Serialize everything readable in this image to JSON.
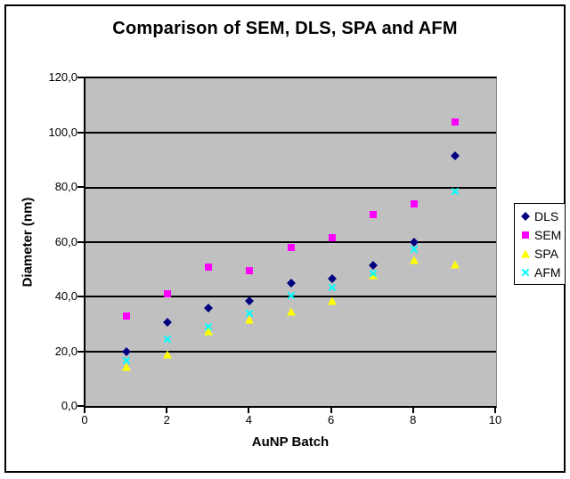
{
  "chart_data": {
    "type": "scatter",
    "title": "Comparison of SEM, DLS, SPA and AFM",
    "xlabel": "AuNP Batch",
    "ylabel": "Diameter (nm)",
    "xlim": [
      0,
      10
    ],
    "ylim": [
      0,
      120
    ],
    "x_tick_labels": [
      "0",
      "2",
      "4",
      "6",
      "8",
      "10"
    ],
    "y_tick_labels": [
      "120,0",
      "100,0",
      "80,0",
      "60,0",
      "40,0",
      "20,0",
      "0,0"
    ],
    "grid": true,
    "plot_background": "#c0c0c0",
    "legend_position": "right",
    "x": [
      1,
      2,
      3,
      4,
      5,
      6,
      7,
      8,
      9
    ],
    "series": [
      {
        "name": "DLS",
        "marker": "diamond",
        "color": "#000080",
        "values": [
          20,
          30.5,
          36,
          38.5,
          45,
          46.5,
          51.5,
          60,
          91.5
        ]
      },
      {
        "name": "SEM",
        "marker": "square",
        "color": "#ff00ff",
        "values": [
          33,
          41,
          51,
          49.5,
          58,
          61.5,
          70,
          74,
          104
        ]
      },
      {
        "name": "SPA",
        "marker": "triangle",
        "color": "#ffff00",
        "values": [
          14.5,
          19,
          27.5,
          31.5,
          34.5,
          38.5,
          48,
          53.5,
          52
        ]
      },
      {
        "name": "AFM",
        "marker": "x",
        "color": "#00ffff",
        "values": [
          16.5,
          24.5,
          29,
          34,
          40.5,
          43.5,
          48.5,
          57.5,
          78.5
        ]
      }
    ]
  }
}
